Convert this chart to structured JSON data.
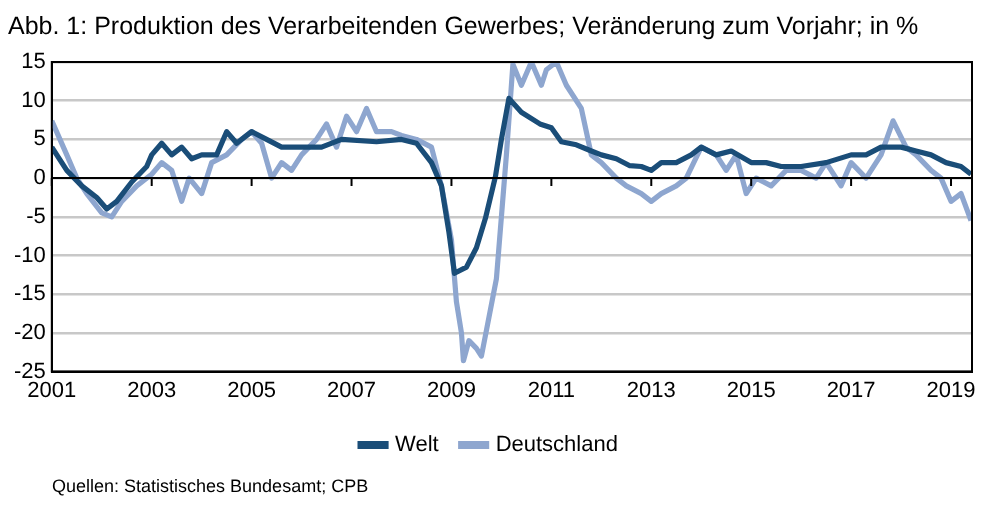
{
  "chart_data": {
    "type": "line",
    "title": "Abb. 1: Produktion des Verarbeitenden Gewerbes; Veränderung zum Vorjahr; in %",
    "annotations": [
      "Quellen: Statistisches Bundesamt; CPB"
    ],
    "xlim": [
      2001,
      2019.42
    ],
    "xticks": [
      2001,
      2003,
      2005,
      2007,
      2009,
      2011,
      2013,
      2015,
      2017,
      2019
    ],
    "ylim": [
      -25,
      15
    ],
    "yticks": [
      -25,
      -20,
      -15,
      -10,
      -5,
      0,
      5,
      10,
      15
    ],
    "grid": "y",
    "legend": "bottom",
    "marker": "none",
    "line_style": "solid",
    "series": [
      {
        "name": "Welt",
        "color": "#1a4d78",
        "x": [
          2001,
          2001.3,
          2001.6,
          2001.9,
          2002.1,
          2002.3,
          2002.6,
          2002.9,
          2003.0,
          2003.2,
          2003.4,
          2003.6,
          2003.8,
          2004.0,
          2004.3,
          2004.5,
          2004.7,
          2005.0,
          2005.3,
          2005.6,
          2006.0,
          2006.4,
          2006.8,
          2007.5,
          2008.0,
          2008.3,
          2008.6,
          2008.8,
          2008.95,
          2009.06,
          2009.3,
          2009.5,
          2009.68,
          2009.88,
          2010.0,
          2010.15,
          2010.4,
          2010.77,
          2011.0,
          2011.2,
          2011.5,
          2011.8,
          2012.0,
          2012.3,
          2012.57,
          2012.8,
          2013.0,
          2013.2,
          2013.5,
          2013.8,
          2014.0,
          2014.3,
          2014.6,
          2015.0,
          2015.3,
          2015.6,
          2016.0,
          2016.5,
          2017.0,
          2017.3,
          2017.6,
          2018.0,
          2018.3,
          2018.6,
          2018.9,
          2019.2,
          2019.4
        ],
        "values": [
          4,
          1,
          -1,
          -2.5,
          -4,
          -3,
          -0.5,
          1.5,
          3,
          4.5,
          3,
          4,
          2.5,
          3,
          3,
          6,
          4.5,
          6,
          5,
          4,
          4,
          4,
          5,
          4.7,
          5,
          4.5,
          2,
          -1,
          -7,
          -12.3,
          -11.5,
          -9,
          -5.2,
          0.2,
          5,
          10.3,
          8.5,
          7,
          6.5,
          4.7,
          4.3,
          3.5,
          3,
          2.5,
          1.6,
          1.5,
          1,
          2,
          2,
          3,
          4,
          3,
          3.5,
          2,
          2,
          1.5,
          1.5,
          2,
          3,
          3,
          4,
          4,
          3.5,
          3,
          2,
          1.5,
          0.5
        ]
      },
      {
        "name": "Deutschland",
        "color": "#8ea6cf",
        "x": [
          2001,
          2001.3,
          2001.5,
          2001.7,
          2002.0,
          2002.2,
          2002.4,
          2002.7,
          2003.0,
          2003.2,
          2003.4,
          2003.6,
          2003.75,
          2004.0,
          2004.2,
          2004.5,
          2004.8,
          2005.0,
          2005.2,
          2005.4,
          2005.6,
          2005.8,
          2006.0,
          2006.3,
          2006.5,
          2006.7,
          2006.9,
          2007.1,
          2007.3,
          2007.5,
          2007.8,
          2008.0,
          2008.3,
          2008.6,
          2008.8,
          2009.0,
          2009.1,
          2009.2,
          2009.24,
          2009.35,
          2009.5,
          2009.6,
          2009.75,
          2009.9,
          2010.0,
          2010.1,
          2010.23,
          2010.4,
          2010.6,
          2010.8,
          2010.9,
          2011.1,
          2011.3,
          2011.6,
          2011.8,
          2012.0,
          2012.3,
          2012.5,
          2012.8,
          2013.0,
          2013.2,
          2013.5,
          2013.7,
          2014.0,
          2014.3,
          2014.5,
          2014.7,
          2014.9,
          2015.1,
          2015.4,
          2015.7,
          2016.0,
          2016.3,
          2016.5,
          2016.8,
          2017.0,
          2017.3,
          2017.6,
          2017.84,
          2018.1,
          2018.3,
          2018.6,
          2018.8,
          2019.0,
          2019.2,
          2019.4
        ],
        "values": [
          7.4,
          3,
          0,
          -2,
          -4.5,
          -5,
          -3,
          -1,
          0.5,
          2,
          1,
          -3,
          0,
          -2,
          2,
          3,
          5,
          6,
          4.5,
          0,
          2,
          1,
          3,
          5,
          7,
          4,
          8,
          6,
          9,
          6,
          6,
          5.5,
          5,
          4,
          -1,
          -8,
          -16,
          -20,
          -23.6,
          -21,
          -22,
          -23,
          -18,
          -13,
          -5,
          3,
          14.7,
          12,
          15,
          12,
          14,
          15,
          12,
          9,
          3,
          2,
          0,
          -1,
          -2,
          -3,
          -2,
          -1,
          0,
          4,
          3,
          1,
          3,
          -2,
          0,
          -1,
          1,
          1,
          0,
          2,
          -1,
          2,
          0,
          3,
          7.4,
          4,
          3,
          1,
          0,
          -3,
          -2,
          -5.5
        ]
      }
    ]
  }
}
